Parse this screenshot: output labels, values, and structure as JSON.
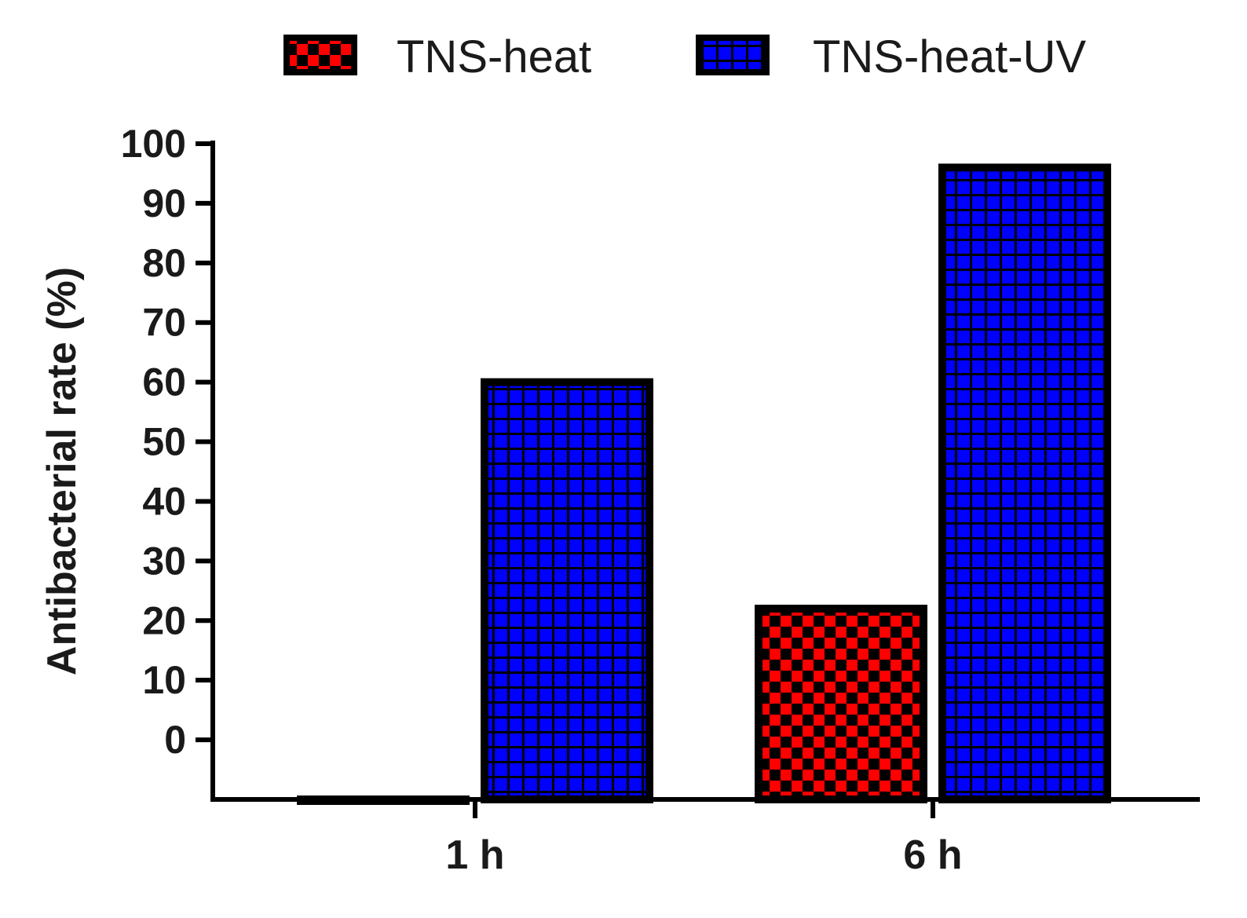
{
  "chart_data": {
    "type": "bar",
    "title": "",
    "xlabel": "",
    "ylabel": "Antibacterial rate (%)",
    "categories": [
      "1 h",
      "6 h"
    ],
    "series": [
      {
        "name": "TNS-heat",
        "values": [
          -10,
          22
        ],
        "color": "#ff0000",
        "pattern": "checker"
      },
      {
        "name": "TNS-heat-UV",
        "values": [
          60,
          96
        ],
        "color": "#0000ff",
        "pattern": "grid"
      }
    ],
    "ylim": [
      -10,
      100
    ],
    "yticks": [
      0,
      10,
      20,
      30,
      40,
      50,
      60,
      70,
      80,
      90,
      100
    ],
    "legend_position": "top",
    "grid": false
  }
}
